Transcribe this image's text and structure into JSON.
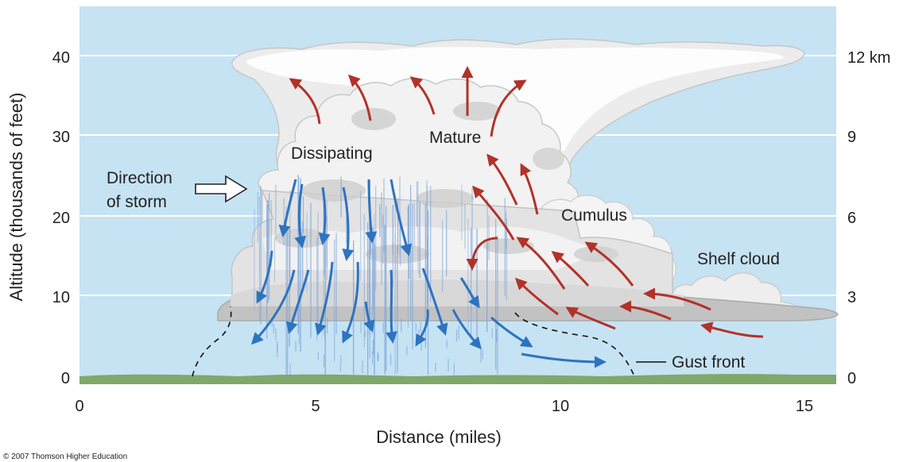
{
  "chart_data": {
    "type": "diagram",
    "title": "",
    "xlabel": "Distance (miles)",
    "ylabel": "Altitude (thousands of feet)",
    "x_ticks": [
      "0",
      "5",
      "10",
      "15"
    ],
    "y_ticks_left": [
      "0",
      "10",
      "20",
      "30",
      "40"
    ],
    "y_ticks_right": [
      "0",
      "3",
      "6",
      "9",
      "12 km"
    ],
    "xlim": [
      0,
      15.8
    ],
    "ylim": [
      0,
      45
    ],
    "grid": true
  },
  "labels": {
    "dissipating": "Dissipating",
    "mature": "Mature",
    "cumulus": "Cumulus",
    "shelf_cloud": "Shelf cloud",
    "direction_line1": "Direction",
    "direction_line2": "of storm",
    "gust_front": "Gust front"
  },
  "copyright": "© 2007 Thomson Higher Education",
  "colors": {
    "sky": "#c6e3f4",
    "ground": "#7fa86a",
    "updraft": "#b23229",
    "downdraft": "#2e73c0",
    "rain": "#7fa7d8",
    "cloud_white": "#ffffff",
    "cloud_gray": "#c9c9c9"
  }
}
